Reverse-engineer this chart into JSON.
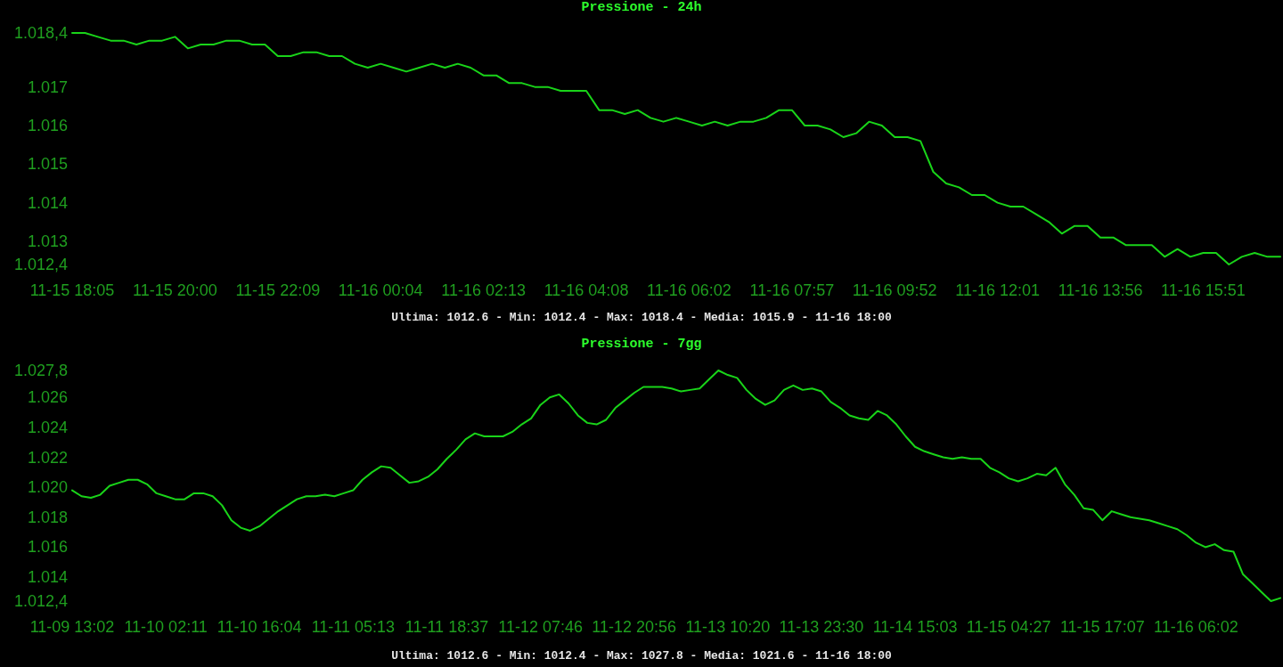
{
  "chart_data": [
    {
      "type": "line",
      "title": "Pressione - 24h",
      "categories": [
        "11-15 18:05",
        null,
        null,
        null,
        null,
        null,
        null,
        null,
        "11-15 20:00",
        null,
        null,
        null,
        null,
        null,
        null,
        null,
        "11-15 22:09",
        null,
        null,
        null,
        null,
        null,
        null,
        null,
        "11-16 00:04",
        null,
        null,
        null,
        null,
        null,
        null,
        null,
        "11-16 02:13",
        null,
        null,
        null,
        null,
        null,
        null,
        null,
        "11-16 04:08",
        null,
        null,
        null,
        null,
        null,
        null,
        null,
        "11-16 06:02",
        null,
        null,
        null,
        null,
        null,
        null,
        null,
        "11-16 07:57",
        null,
        null,
        null,
        null,
        null,
        null,
        null,
        "11-16 09:52",
        null,
        null,
        null,
        null,
        null,
        null,
        null,
        "11-16 12:01",
        null,
        null,
        null,
        null,
        null,
        null,
        null,
        "11-16 13:56",
        null,
        null,
        null,
        null,
        null,
        null,
        null,
        "11-16 15:51",
        null,
        null,
        null,
        null,
        null,
        null
      ],
      "series": [
        {
          "color": "#19d419",
          "values": [
            1018.4,
            1018.4,
            1018.3,
            1018.2,
            1018.2,
            1018.1,
            1018.2,
            1018.2,
            1018.3,
            1018.0,
            1018.1,
            1018.1,
            1018.2,
            1018.2,
            1018.1,
            1018.1,
            1017.8,
            1017.8,
            1017.9,
            1017.9,
            1017.8,
            1017.8,
            1017.6,
            1017.5,
            1017.6,
            1017.5,
            1017.4,
            1017.5,
            1017.6,
            1017.5,
            1017.6,
            1017.5,
            1017.3,
            1017.3,
            1017.1,
            1017.1,
            1017.0,
            1017.0,
            1016.9,
            1016.9,
            1016.9,
            1016.4,
            1016.4,
            1016.3,
            1016.4,
            1016.2,
            1016.1,
            1016.2,
            1016.1,
            1016.0,
            1016.1,
            1016.0,
            1016.1,
            1016.1,
            1016.2,
            1016.4,
            1016.4,
            1016.0,
            1016.0,
            1015.9,
            1015.7,
            1015.8,
            1016.1,
            1016.0,
            1015.7,
            1015.7,
            1015.6,
            1014.8,
            1014.5,
            1014.4,
            1014.2,
            1014.2,
            1014.0,
            1013.9,
            1013.9,
            1013.7,
            1013.5,
            1013.2,
            1013.4,
            1013.4,
            1013.1,
            1013.1,
            1012.9,
            1012.9,
            1012.9,
            1012.6,
            1012.8,
            1012.6,
            1012.7,
            1012.7,
            1012.4,
            1012.6,
            1012.7,
            1012.6,
            1012.6
          ]
        }
      ],
      "ylim": [
        1012.4,
        1018.4
      ],
      "yticks": [
        {
          "value": 1018.4,
          "label": "1.018,4"
        },
        {
          "value": 1017,
          "label": "1.017"
        },
        {
          "value": 1016,
          "label": "1.016"
        },
        {
          "value": 1015,
          "label": "1.015"
        },
        {
          "value": 1014,
          "label": "1.014"
        },
        {
          "value": 1013,
          "label": "1.013"
        },
        {
          "value": 1012.4,
          "label": "1.012,4"
        }
      ],
      "grid": false,
      "marker": "none",
      "annotations": [
        "Ultima: 1012.6 - Min: 1012.4 - Max: 1018.4 - Media: 1015.9 - 11-16 18:00"
      ]
    },
    {
      "type": "line",
      "title": "Pressione - 7gg",
      "categories": [
        "11-09 13:02",
        null,
        null,
        null,
        null,
        null,
        null,
        null,
        null,
        null,
        "11-10 02:11",
        null,
        null,
        null,
        null,
        null,
        null,
        null,
        null,
        null,
        "11-10 16:04",
        null,
        null,
        null,
        null,
        null,
        null,
        null,
        null,
        null,
        "11-11 05:13",
        null,
        null,
        null,
        null,
        null,
        null,
        null,
        null,
        null,
        "11-11 18:37",
        null,
        null,
        null,
        null,
        null,
        null,
        null,
        null,
        null,
        "11-12 07:46",
        null,
        null,
        null,
        null,
        null,
        null,
        null,
        null,
        null,
        "11-12 20:56",
        null,
        null,
        null,
        null,
        null,
        null,
        null,
        null,
        null,
        "11-13 10:20",
        null,
        null,
        null,
        null,
        null,
        null,
        null,
        null,
        null,
        "11-13 23:30",
        null,
        null,
        null,
        null,
        null,
        null,
        null,
        null,
        null,
        "11-14 15:03",
        null,
        null,
        null,
        null,
        null,
        null,
        null,
        null,
        null,
        "11-15 04:27",
        null,
        null,
        null,
        null,
        null,
        null,
        null,
        null,
        null,
        "11-15 17:07",
        null,
        null,
        null,
        null,
        null,
        null,
        null,
        null,
        null,
        "11-16 06:02",
        null,
        null,
        null,
        null,
        null,
        null,
        null,
        null,
        null
      ],
      "series": [
        {
          "color": "#19d419",
          "values": [
            1019.8,
            1019.4,
            1019.3,
            1019.5,
            1020.1,
            1020.3,
            1020.5,
            1020.5,
            1020.2,
            1019.6,
            1019.4,
            1019.2,
            1019.2,
            1019.6,
            1019.6,
            1019.4,
            1018.8,
            1017.8,
            1017.3,
            1017.1,
            1017.4,
            1017.9,
            1018.4,
            1018.8,
            1019.2,
            1019.4,
            1019.4,
            1019.5,
            1019.4,
            1019.6,
            1019.8,
            1020.5,
            1021.0,
            1021.4,
            1021.3,
            1020.8,
            1020.3,
            1020.4,
            1020.7,
            1021.2,
            1021.9,
            1022.5,
            1023.2,
            1023.6,
            1023.4,
            1023.4,
            1023.4,
            1023.7,
            1024.2,
            1024.6,
            1025.5,
            1026.0,
            1026.2,
            1025.6,
            1024.8,
            1024.3,
            1024.2,
            1024.5,
            1025.3,
            1025.8,
            1026.3,
            1026.7,
            1026.7,
            1026.7,
            1026.6,
            1026.4,
            1026.5,
            1026.6,
            1027.2,
            1027.8,
            1027.5,
            1027.3,
            1026.5,
            1025.9,
            1025.5,
            1025.8,
            1026.5,
            1026.8,
            1026.5,
            1026.6,
            1026.4,
            1025.7,
            1025.3,
            1024.8,
            1024.6,
            1024.5,
            1025.1,
            1024.8,
            1024.2,
            1023.4,
            1022.7,
            1022.4,
            1022.2,
            1022.0,
            1021.9,
            1022.0,
            1021.9,
            1021.9,
            1021.3,
            1021.0,
            1020.6,
            1020.4,
            1020.6,
            1020.9,
            1020.8,
            1021.3,
            1020.2,
            1019.5,
            1018.6,
            1018.5,
            1017.8,
            1018.4,
            1018.2,
            1018.0,
            1017.9,
            1017.8,
            1017.6,
            1017.4,
            1017.2,
            1016.8,
            1016.3,
            1016.0,
            1016.2,
            1015.8,
            1015.7,
            1014.2,
            1013.6,
            1013.0,
            1012.4,
            1012.6
          ]
        }
      ],
      "ylim": [
        1012.4,
        1027.8
      ],
      "yticks": [
        {
          "value": 1027.8,
          "label": "1.027,8"
        },
        {
          "value": 1026,
          "label": "1.026"
        },
        {
          "value": 1024,
          "label": "1.024"
        },
        {
          "value": 1022,
          "label": "1.022"
        },
        {
          "value": 1020,
          "label": "1.020"
        },
        {
          "value": 1018,
          "label": "1.018"
        },
        {
          "value": 1016,
          "label": "1.016"
        },
        {
          "value": 1014,
          "label": "1.014"
        },
        {
          "value": 1012.4,
          "label": "1.012,4"
        }
      ],
      "grid": false,
      "marker": "none",
      "annotations": [
        "Ultima: 1012.6 - Min: 1012.4 - Max: 1027.8 - Media: 1021.6 - 11-16 18:00"
      ]
    }
  ]
}
